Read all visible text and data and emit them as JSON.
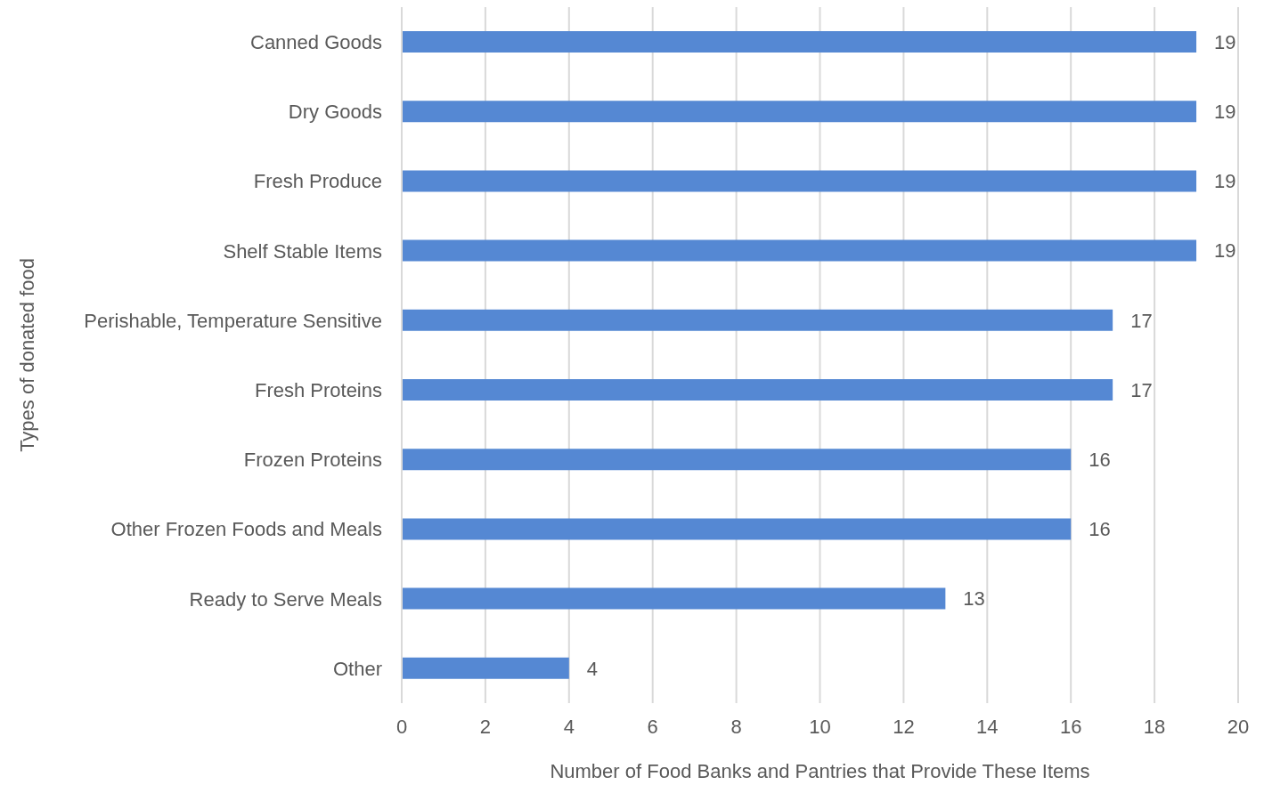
{
  "chart_data": {
    "type": "bar",
    "orientation": "horizontal",
    "xlabel": "Number of Food Banks and Pantries that Provide These Items",
    "ylabel": "Types of donated food",
    "categories": [
      "Canned Goods",
      "Dry Goods",
      "Fresh Produce",
      "Shelf Stable Items",
      "Perishable, Temperature Sensitive",
      "Fresh Proteins",
      "Frozen Proteins",
      "Other Frozen Foods and Meals",
      "Ready to Serve Meals",
      "Other"
    ],
    "values": [
      19,
      19,
      19,
      19,
      17,
      17,
      16,
      16,
      13,
      4
    ],
    "color": "#5588d3",
    "xlim": [
      0,
      20
    ],
    "xticks": [
      0,
      2,
      4,
      6,
      8,
      10,
      12,
      14,
      16,
      18,
      20
    ],
    "grid": "x",
    "data_labels": true
  }
}
